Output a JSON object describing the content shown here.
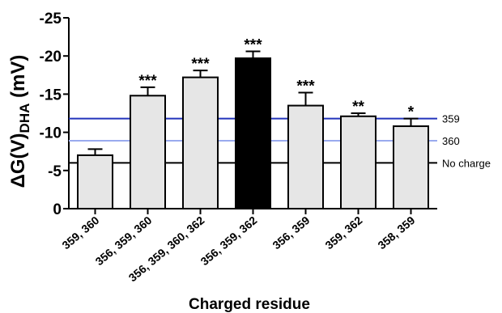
{
  "chart_data": {
    "type": "bar",
    "title": "",
    "xlabel": "Charged residue",
    "ylabel": {
      "prefix": "ΔG(V)",
      "subscript": "DHA",
      "suffix": " (mV)"
    },
    "ylim": [
      0,
      -25
    ],
    "yticks": [
      0,
      -5,
      -10,
      -15,
      -20,
      -25
    ],
    "ytick_labels": [
      "0",
      "-5",
      "-10",
      "-15",
      "-20",
      "-25"
    ],
    "categories": [
      "359, 360",
      "356, 359, 360",
      "356, 359, 360, 362",
      "356, 359, 362",
      "356, 359",
      "359, 362",
      "358, 359"
    ],
    "values": [
      -7.0,
      -14.8,
      -17.2,
      -19.7,
      -13.5,
      -12.1,
      -10.8
    ],
    "errors": [
      0.8,
      1.1,
      0.9,
      0.9,
      1.7,
      0.4,
      1.0
    ],
    "significance": [
      "",
      "***",
      "***",
      "***",
      "***",
      "**",
      "*"
    ],
    "bar_colors": [
      "#e6e6e6",
      "#e6e6e6",
      "#e6e6e6",
      "#000000",
      "#e6e6e6",
      "#e6e6e6",
      "#e6e6e6"
    ],
    "reference_lines": [
      {
        "label": "359",
        "value": -11.8,
        "color": "#2233bb"
      },
      {
        "label": "360",
        "value": -8.9,
        "color": "#99aaee"
      },
      {
        "label": "No charge",
        "value": -6.0,
        "color": "#000000"
      }
    ],
    "grid": false,
    "legend": "none"
  }
}
